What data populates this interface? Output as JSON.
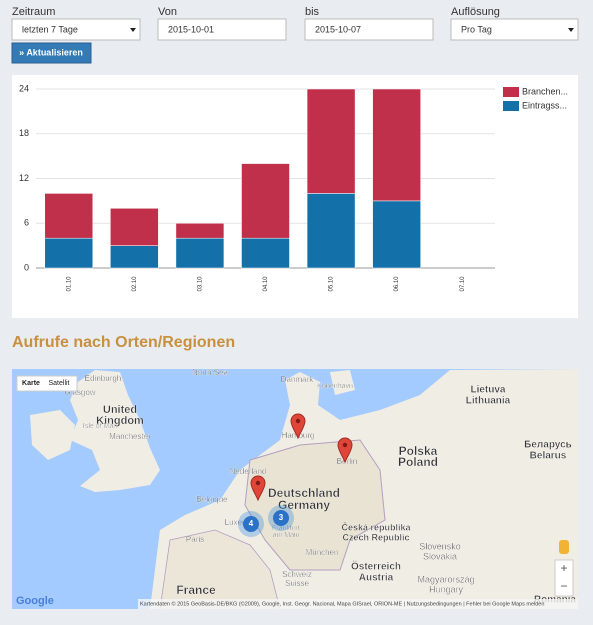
{
  "filters": {
    "zeitraum": {
      "label": "Zeitraum",
      "value": "letzten 7 Tage"
    },
    "von": {
      "label": "Von",
      "value": "2015-10-01"
    },
    "bis": {
      "label": "bis",
      "value": "2015-10-07"
    },
    "aufloesung": {
      "label": "Auflösung",
      "value": "Pro Tag"
    },
    "button": "» Aktualisieren"
  },
  "chart_data": {
    "type": "bar",
    "stacked": true,
    "categories": [
      "01.10",
      "02.10",
      "03.10",
      "04.10",
      "05.10",
      "06.10",
      "07.10"
    ],
    "series": [
      {
        "name": "Branchen...",
        "color": "#c0304a",
        "values": [
          6,
          5,
          2,
          10,
          14,
          15,
          0
        ]
      },
      {
        "name": "Eintragss...",
        "color": "#1470a8",
        "values": [
          4,
          3,
          4,
          4,
          10,
          9,
          0
        ]
      }
    ],
    "ylim": [
      0,
      24
    ],
    "yticks": [
      0,
      6,
      12,
      18,
      24
    ],
    "grid": true,
    "legend": "right"
  },
  "section_title": "Aufrufe nach Orten/Regionen",
  "map": {
    "map_types": [
      "Karte",
      "Satellit"
    ],
    "labels": [
      "North Sea",
      "Edinburgh",
      "Glasgow",
      "United",
      "Kingdom",
      "Isle of Man",
      "Manchester",
      "Danmark",
      "København",
      "Lietuva",
      "Lithuania",
      "Hamburg",
      "Berlin",
      "Polska",
      "Poland",
      "Беларусь",
      "Belarus",
      "Nederland",
      "Deutschland",
      "Germany",
      "Belgique",
      "Luxemb.",
      "Frankfurt",
      "am Main",
      "Česká republika",
      "Czech Republic",
      "Paris",
      "München",
      "Schweiz",
      "Suisse",
      "Österreich",
      "Austria",
      "Slovensko",
      "Slovakia",
      "Magyarország",
      "Hungary",
      "France",
      "România"
    ],
    "clusters": [
      "4",
      "3"
    ],
    "zoom": [
      "+",
      "−"
    ],
    "logo": "Google",
    "attribution": "Kartendaten © 2015 GeoBasis-DE/BKG (©2009), Google, Inst. Geogr. Nacional, Mapa GISrael, ORION-ME | Nutzungsbedingungen | Fehler bei Google Maps melden"
  }
}
